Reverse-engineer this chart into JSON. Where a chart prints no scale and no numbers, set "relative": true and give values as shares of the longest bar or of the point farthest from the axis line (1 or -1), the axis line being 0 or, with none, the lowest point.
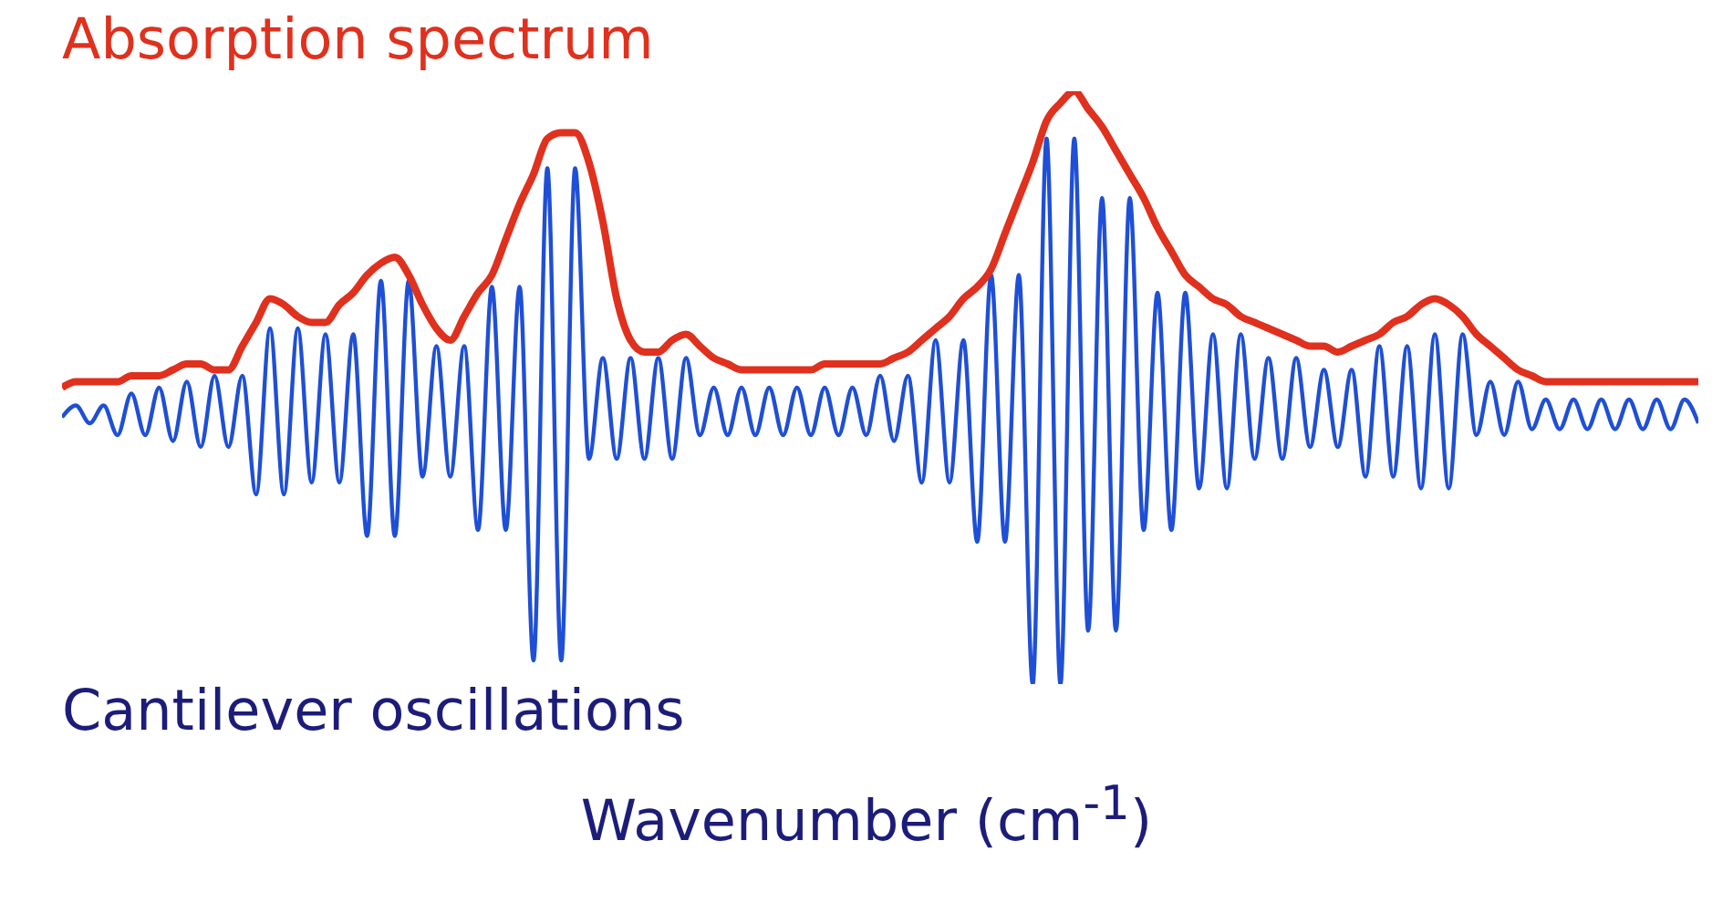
{
  "chart_data": {
    "type": "line",
    "xlabel": "Wavenumber (cm$^{-1}$)",
    "relative": true,
    "grid": false,
    "legend": false,
    "marker": "none",
    "line_style": "solid",
    "categories": [
      null,
      null,
      null,
      null,
      null,
      null,
      null,
      null,
      null,
      null,
      null,
      null,
      null,
      null,
      null,
      null,
      null,
      null,
      null,
      null,
      null,
      null,
      null,
      null,
      null,
      null,
      null,
      null,
      null,
      null,
      null,
      null,
      null,
      null,
      null,
      null,
      null,
      null,
      null,
      null,
      null,
      null,
      null,
      null,
      null,
      null,
      null,
      null,
      null,
      null,
      null,
      null,
      null,
      null,
      null,
      null,
      null,
      null,
      null,
      null,
      null,
      null,
      null,
      null,
      null,
      null,
      null,
      null,
      null,
      null,
      null,
      null,
      null,
      null,
      null,
      null,
      null,
      null,
      null,
      null,
      null,
      null,
      null,
      null,
      null,
      null,
      null,
      null,
      null,
      null,
      null,
      null,
      null,
      null,
      null,
      null,
      null,
      null,
      null,
      null,
      null,
      null,
      null,
      null,
      null,
      null,
      null,
      null,
      null,
      null,
      null,
      null,
      null,
      null,
      null,
      null,
      null,
      null,
      null
    ],
    "series": [
      {
        "name": "Absorption spectrum",
        "color": "#e0301e",
        "values": [
          0.5,
          0.51,
          0.51,
          0.51,
          0.51,
          0.52,
          0.52,
          0.52,
          0.53,
          0.54,
          0.54,
          0.53,
          0.53,
          0.57,
          0.61,
          0.65,
          0.64,
          0.62,
          0.61,
          0.61,
          0.64,
          0.66,
          0.69,
          0.71,
          0.72,
          0.69,
          0.64,
          0.6,
          0.58,
          0.62,
          0.66,
          0.69,
          0.75,
          0.81,
          0.86,
          0.92,
          0.93,
          0.93,
          0.88,
          0.78,
          0.65,
          0.58,
          0.56,
          0.56,
          0.58,
          0.59,
          0.57,
          0.55,
          0.54,
          0.53,
          0.53,
          0.53,
          0.53,
          0.53,
          0.53,
          0.54,
          0.54,
          0.54,
          0.54,
          0.54,
          0.55,
          0.56,
          0.58,
          0.6,
          0.62,
          0.65,
          0.67,
          0.7,
          0.76,
          0.82,
          0.88,
          0.95,
          0.98,
          1,
          0.97,
          0.94,
          0.9,
          0.86,
          0.82,
          0.77,
          0.73,
          0.69,
          0.67,
          0.65,
          0.64,
          0.62,
          0.61,
          0.6,
          0.59,
          0.58,
          0.57,
          0.57,
          0.56,
          0.57,
          0.58,
          0.59,
          0.61,
          0.62,
          0.64,
          0.65,
          0.64,
          0.62,
          0.59,
          0.57,
          0.55,
          0.53,
          0.52,
          0.51,
          0.51,
          0.51,
          0.51,
          0.51,
          0.51,
          0.51,
          0.51,
          0.51,
          0.51,
          0.51,
          0.51
        ]
      },
      {
        "name": "Cantilever oscillations",
        "color": "#1f4fd6",
        "values": [
          0.45,
          0.47,
          0.44,
          0.47,
          0.42,
          0.49,
          0.42,
          0.5,
          0.41,
          0.51,
          0.4,
          0.52,
          0.4,
          0.52,
          0.32,
          0.6,
          0.32,
          0.6,
          0.34,
          0.59,
          0.34,
          0.59,
          0.25,
          0.68,
          0.25,
          0.68,
          0.35,
          0.57,
          0.35,
          0.57,
          0.26,
          0.67,
          0.26,
          0.67,
          0.04,
          0.87,
          0.04,
          0.87,
          0.38,
          0.55,
          0.38,
          0.55,
          0.38,
          0.55,
          0.38,
          0.55,
          0.42,
          0.5,
          0.42,
          0.5,
          0.42,
          0.5,
          0.42,
          0.5,
          0.42,
          0.5,
          0.42,
          0.5,
          0.42,
          0.52,
          0.41,
          0.52,
          0.34,
          0.58,
          0.34,
          0.58,
          0.24,
          0.69,
          0.24,
          0.69,
          0,
          0.92,
          0,
          0.92,
          0.09,
          0.82,
          0.09,
          0.82,
          0.26,
          0.66,
          0.26,
          0.66,
          0.33,
          0.59,
          0.33,
          0.59,
          0.38,
          0.55,
          0.38,
          0.55,
          0.4,
          0.53,
          0.4,
          0.53,
          0.35,
          0.57,
          0.35,
          0.57,
          0.33,
          0.59,
          0.33,
          0.59,
          0.42,
          0.51,
          0.42,
          0.51,
          0.43,
          0.48,
          0.43,
          0.48,
          0.43,
          0.48,
          0.43,
          0.48,
          0.43,
          0.48,
          0.43,
          0.48,
          0.44
        ]
      }
    ]
  }
}
